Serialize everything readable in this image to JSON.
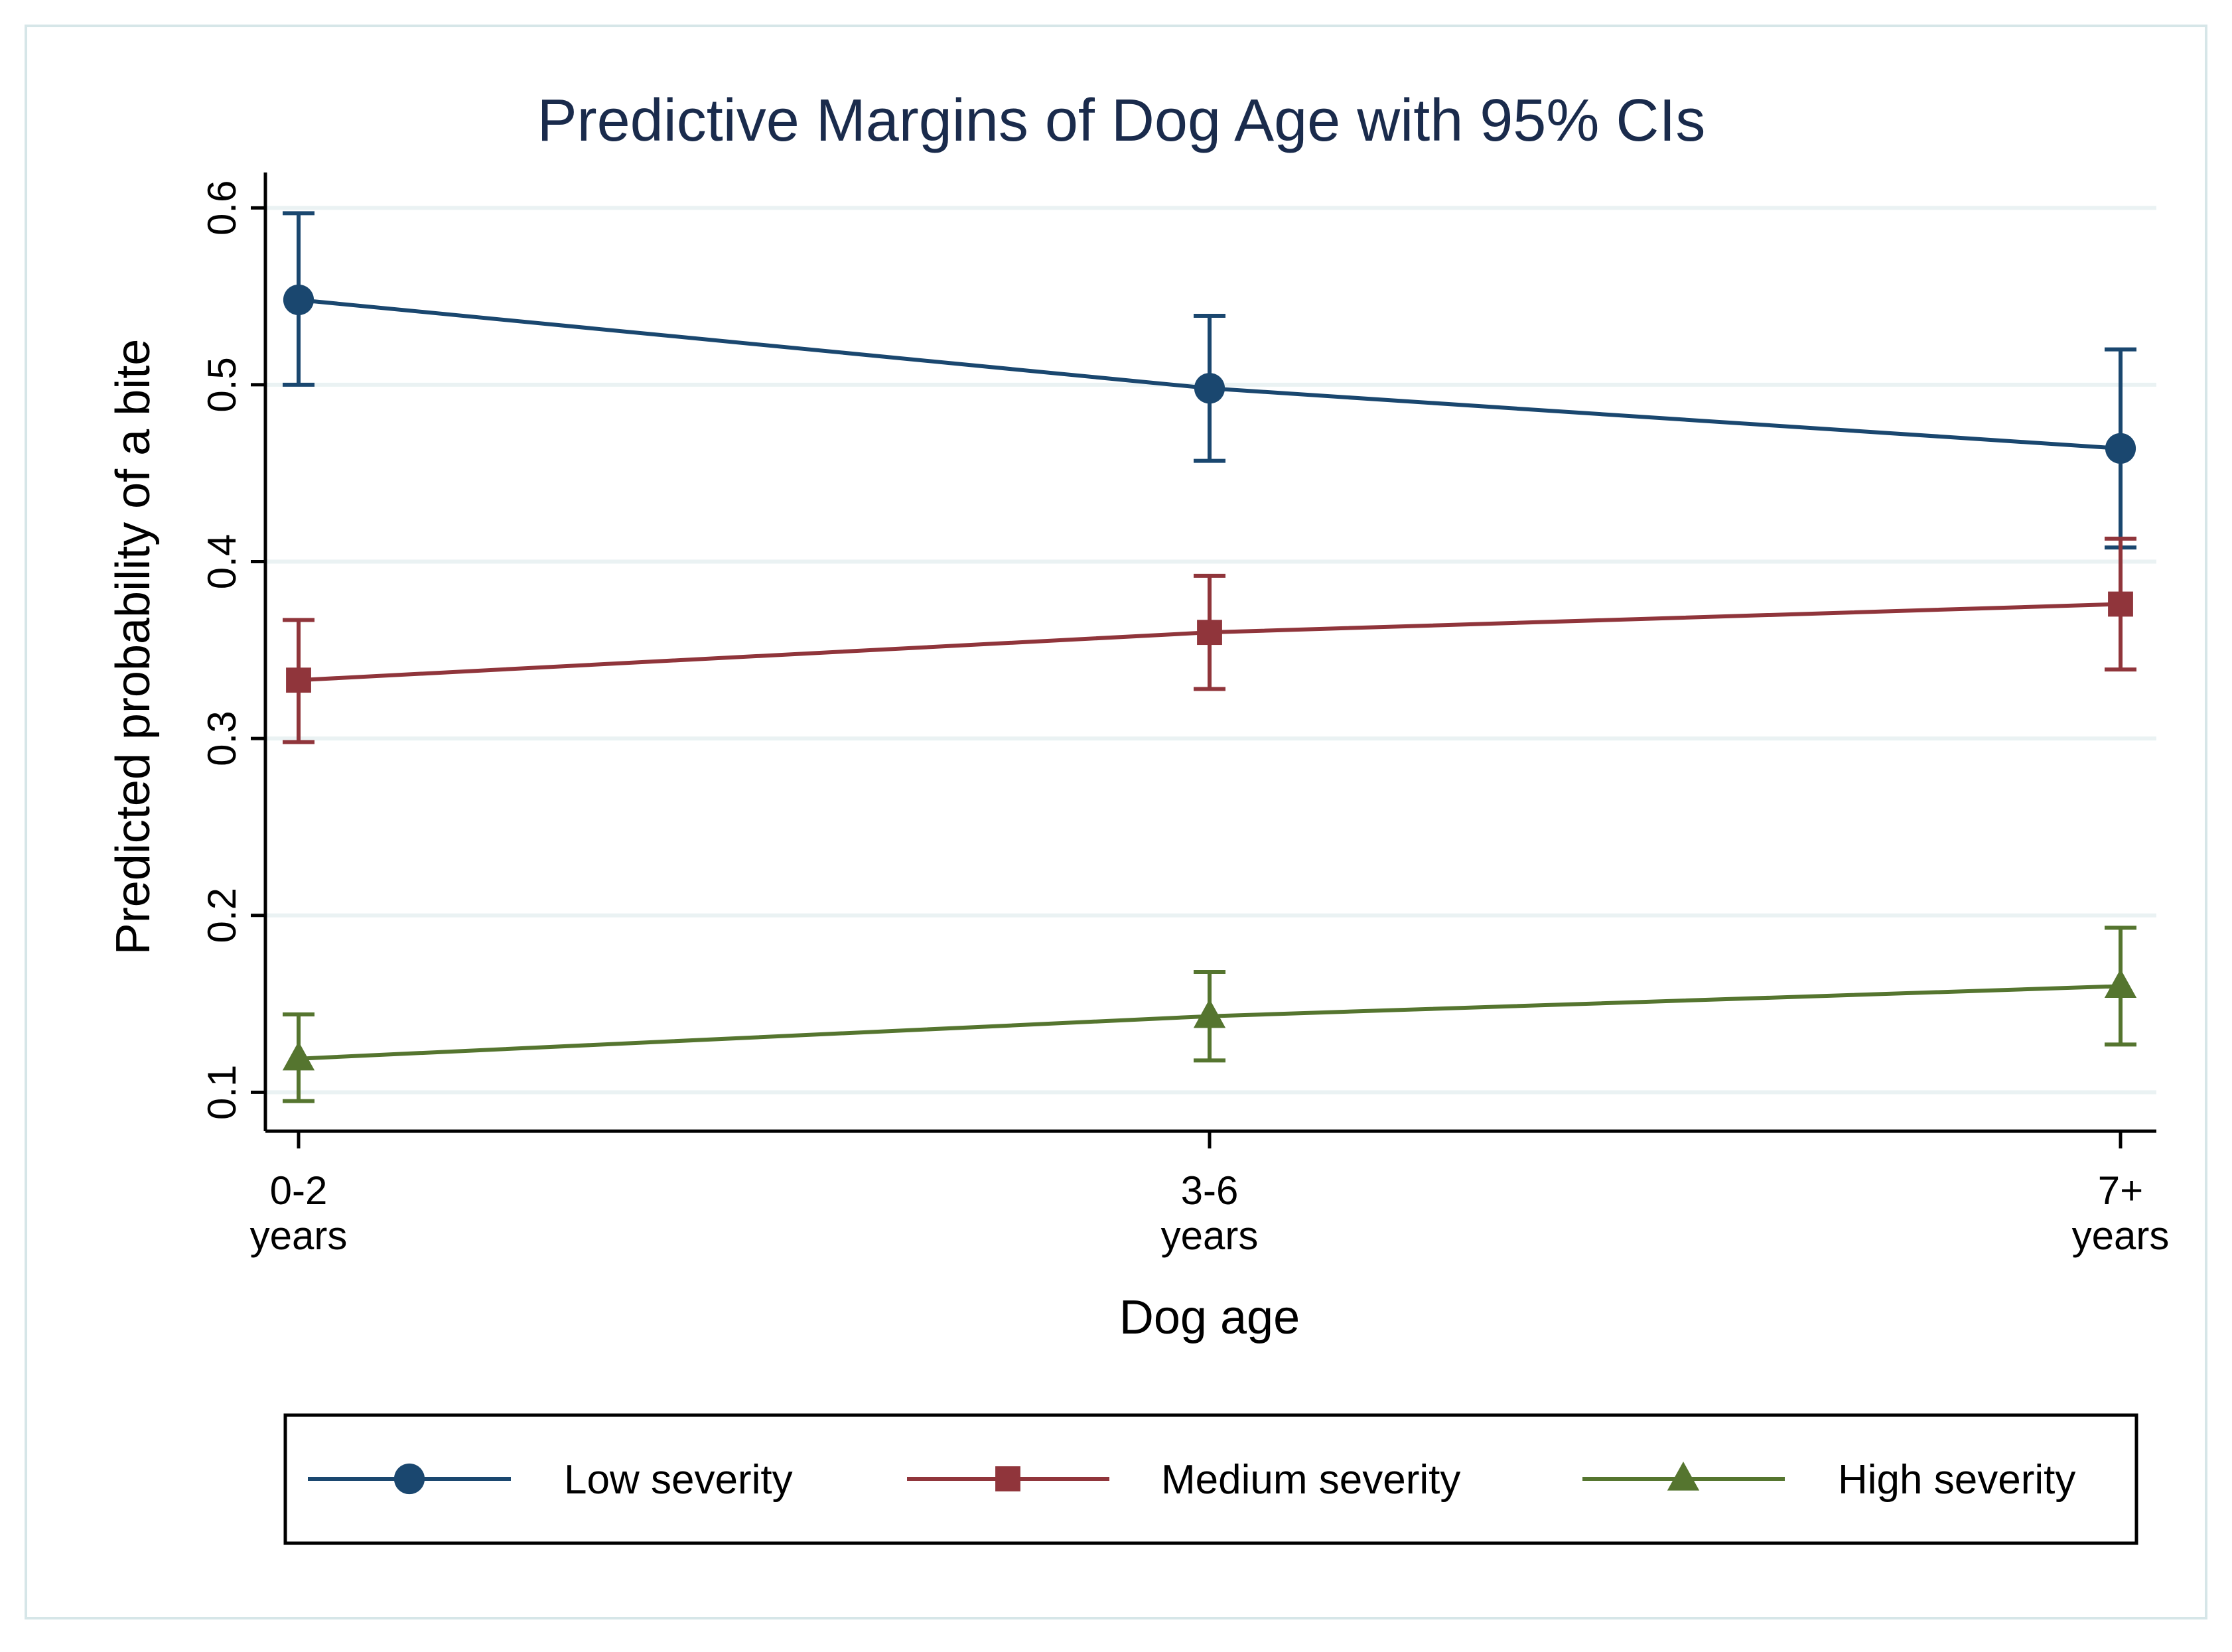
{
  "chart_data": {
    "type": "line",
    "title": "Predictive Margins of Dog Age with 95% CIs",
    "xlabel": "Dog age",
    "ylabel": "Predicted probability of a bite",
    "categories": [
      {
        "line1": "0-2",
        "line2": "years"
      },
      {
        "line1": "3-6",
        "line2": "years"
      },
      {
        "line1": "7+",
        "line2": "years"
      }
    ],
    "yticks": [
      "0.1",
      "0.2",
      "0.3",
      "0.4",
      "0.5",
      "0.6"
    ],
    "ylim": [
      0.078,
      0.62
    ],
    "grid": true,
    "legend_position": "bottom",
    "series": [
      {
        "name": "Low severity",
        "marker": "circle",
        "color": "#1a476f",
        "values": [
          0.548,
          0.498,
          0.464
        ],
        "ci_low": [
          0.5,
          0.457,
          0.408
        ],
        "ci_high": [
          0.597,
          0.539,
          0.52
        ]
      },
      {
        "name": "Medium severity",
        "marker": "square",
        "color": "#90353b",
        "values": [
          0.333,
          0.36,
          0.376
        ],
        "ci_low": [
          0.298,
          0.328,
          0.339
        ],
        "ci_high": [
          0.367,
          0.392,
          0.413
        ]
      },
      {
        "name": "High severity",
        "marker": "triangle",
        "color": "#55752f",
        "values": [
          0.119,
          0.143,
          0.16
        ],
        "ci_low": [
          0.095,
          0.118,
          0.127
        ],
        "ci_high": [
          0.144,
          0.168,
          0.193
        ]
      }
    ]
  },
  "colors": {
    "title": "#1a2b4c",
    "grid": "#eaf2f3",
    "frame": "#d6e6e8",
    "axis": "#000000"
  }
}
